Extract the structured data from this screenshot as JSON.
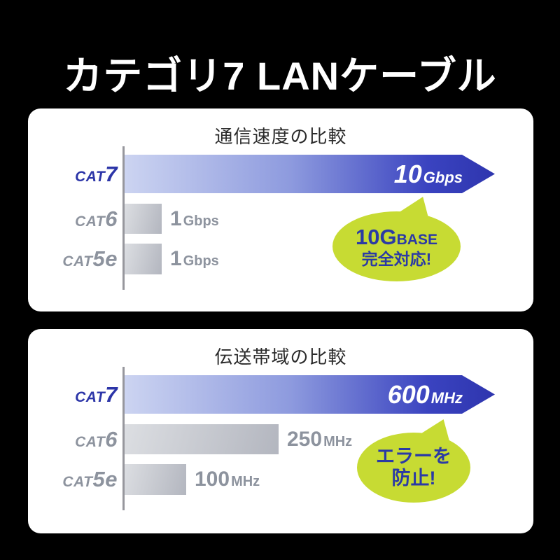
{
  "page_title": "カテゴリ7 LANケーブル",
  "colors": {
    "page_bg": "#000000",
    "panel_bg": "#ffffff",
    "title_text": "#ffffff",
    "panel_title": "#2b2b2b",
    "accent_blue": "#2c35a8",
    "bar_blue_light": "#ccd4f1",
    "bar_blue_dark": "#2e35ae",
    "gray_text": "#8d939e",
    "bar_gray_light": "#dcdee2",
    "bar_gray_dark": "#b3b6bf",
    "axis_gray": "#97979d",
    "bubble_green": "#c7db33",
    "bubble_text": "#2b3aa5"
  },
  "panels": [
    {
      "title": "通信速度の比較",
      "bubble": {
        "big": "10G",
        "small_caps": "BASE",
        "line2": "完全対応!"
      }
    },
    {
      "title": "伝送帯域の比較",
      "bubble": {
        "line1": "エラーを",
        "line2": "防止!"
      }
    }
  ],
  "chart_data": [
    {
      "type": "bar",
      "orientation": "horizontal",
      "title": "通信速度の比較",
      "categories": [
        "CAT7",
        "CAT6",
        "CAT5e"
      ],
      "values": [
        10,
        1,
        1
      ],
      "unit": "Gbps",
      "data_labels": [
        "10Gbps",
        "1Gbps",
        "1Gbps"
      ],
      "highlight_category": "CAT7",
      "annotation": "10GBASE 完全対応!",
      "xlim": [
        0,
        10
      ],
      "grid": false,
      "legend": false
    },
    {
      "type": "bar",
      "orientation": "horizontal",
      "title": "伝送帯域の比較",
      "categories": [
        "CAT7",
        "CAT6",
        "CAT5e"
      ],
      "values": [
        600,
        250,
        100
      ],
      "unit": "MHz",
      "data_labels": [
        "600MHz",
        "250MHz",
        "100MHz"
      ],
      "highlight_category": "CAT7",
      "annotation": "エラーを 防止!",
      "xlim": [
        0,
        600
      ],
      "grid": false,
      "legend": false
    }
  ]
}
